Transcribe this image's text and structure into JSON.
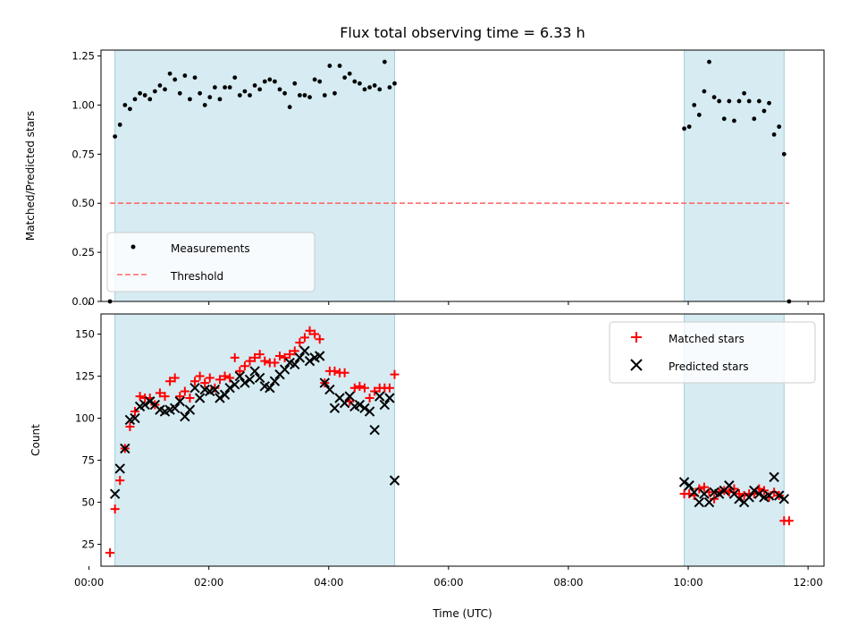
{
  "chart_data": [
    {
      "type": "scatter",
      "title": "Flux total observing time = 6.33 h",
      "xlabel": "",
      "ylabel": "Matched/Predicted stars",
      "xlim": [
        "00:12",
        "12:16"
      ],
      "ylim": [
        0,
        1.28
      ],
      "yticks": [
        "0.00",
        "0.25",
        "0.50",
        "0.75",
        "1.00",
        "1.25"
      ],
      "shaded_regions": [
        [
          "00:26",
          "05:06"
        ],
        [
          "09:56",
          "11:36"
        ]
      ],
      "legend_position": "lower-left",
      "legend": [
        "Measurements",
        "Threshold"
      ],
      "threshold": {
        "name": "Threshold",
        "y": 0.5,
        "x_start": "00:21",
        "x_end": "11:41",
        "color": "#ff6b6b"
      },
      "series": [
        {
          "name": "Measurements",
          "color": "#000000",
          "x": [
            "00:21",
            "00:26",
            "00:31",
            "00:36",
            "00:41",
            "00:46",
            "00:51",
            "00:56",
            "01:01",
            "01:06",
            "01:11",
            "01:16",
            "01:21",
            "01:26",
            "01:31",
            "01:36",
            "01:41",
            "01:46",
            "01:51",
            "01:56",
            "02:01",
            "02:06",
            "02:11",
            "02:16",
            "02:21",
            "02:26",
            "02:31",
            "02:36",
            "02:41",
            "02:46",
            "02:51",
            "02:56",
            "03:01",
            "03:06",
            "03:11",
            "03:16",
            "03:21",
            "03:26",
            "03:31",
            "03:36",
            "03:41",
            "03:46",
            "03:51",
            "03:56",
            "04:01",
            "04:06",
            "04:11",
            "04:16",
            "04:21",
            "04:26",
            "04:31",
            "04:36",
            "04:41",
            "04:46",
            "04:51",
            "04:56",
            "05:01",
            "05:06",
            "09:56",
            "10:01",
            "10:06",
            "10:11",
            "10:16",
            "10:21",
            "10:26",
            "10:31",
            "10:36",
            "10:41",
            "10:46",
            "10:51",
            "10:56",
            "11:01",
            "11:06",
            "11:11",
            "11:16",
            "11:21",
            "11:26",
            "11:31",
            "11:36",
            "11:41"
          ],
          "y": [
            0.0,
            0.84,
            0.9,
            1.0,
            0.98,
            1.03,
            1.06,
            1.05,
            1.03,
            1.07,
            1.1,
            1.08,
            1.16,
            1.13,
            1.06,
            1.15,
            1.03,
            1.14,
            1.06,
            1.0,
            1.04,
            1.09,
            1.03,
            1.09,
            1.09,
            1.14,
            1.05,
            1.07,
            1.05,
            1.1,
            1.08,
            1.12,
            1.13,
            1.12,
            1.08,
            1.06,
            0.99,
            1.11,
            1.05,
            1.05,
            1.04,
            1.13,
            1.12,
            1.05,
            1.2,
            1.06,
            1.2,
            1.14,
            1.16,
            1.12,
            1.11,
            1.08,
            1.09,
            1.1,
            1.08,
            1.22,
            1.09,
            1.11,
            0.88,
            0.89,
            1.0,
            0.95,
            1.07,
            1.22,
            1.04,
            1.02,
            0.93,
            1.02,
            0.92,
            1.02,
            1.06,
            1.02,
            0.93,
            1.02,
            0.97,
            1.01,
            0.85,
            0.89,
            0.75,
            0.0
          ]
        }
      ]
    },
    {
      "type": "scatter",
      "title": "",
      "xlabel": "Time (UTC)",
      "ylabel": "Count",
      "xlim": [
        "00:12",
        "12:16"
      ],
      "ylim": [
        12,
        162
      ],
      "yticks": [
        "25",
        "50",
        "75",
        "100",
        "125",
        "150"
      ],
      "xticks": [
        "00:00",
        "02:00",
        "04:00",
        "06:00",
        "08:00",
        "10:00",
        "12:00"
      ],
      "shaded_regions": [
        [
          "00:26",
          "05:06"
        ],
        [
          "09:56",
          "11:36"
        ]
      ],
      "legend_position": "top-right",
      "legend": [
        "Matched stars",
        "Predicted stars"
      ],
      "series": [
        {
          "name": "Matched stars",
          "color": "#ff0000",
          "x": [
            "00:21",
            "00:26",
            "00:31",
            "00:36",
            "00:41",
            "00:46",
            "00:51",
            "00:56",
            "01:01",
            "01:06",
            "01:11",
            "01:16",
            "01:21",
            "01:26",
            "01:31",
            "01:36",
            "01:41",
            "01:46",
            "01:51",
            "01:56",
            "02:01",
            "02:06",
            "02:11",
            "02:16",
            "02:21",
            "02:26",
            "02:31",
            "02:36",
            "02:41",
            "02:46",
            "02:51",
            "02:56",
            "03:01",
            "03:06",
            "03:11",
            "03:16",
            "03:21",
            "03:26",
            "03:31",
            "03:36",
            "03:41",
            "03:46",
            "03:51",
            "03:56",
            "04:01",
            "04:06",
            "04:11",
            "04:16",
            "04:21",
            "04:26",
            "04:31",
            "04:36",
            "04:41",
            "04:46",
            "04:51",
            "04:56",
            "05:01",
            "05:06",
            "09:56",
            "10:01",
            "10:06",
            "10:11",
            "10:16",
            "10:21",
            "10:26",
            "10:31",
            "10:36",
            "10:41",
            "10:46",
            "10:51",
            "10:56",
            "11:01",
            "11:06",
            "11:11",
            "11:16",
            "11:21",
            "11:26",
            "11:31",
            "11:36",
            "11:41"
          ],
          "y": [
            20,
            46,
            63,
            82,
            95,
            104,
            113,
            112,
            112,
            108,
            115,
            113,
            122,
            124,
            113,
            116,
            112,
            122,
            125,
            121,
            124,
            118,
            123,
            125,
            124,
            136,
            128,
            131,
            134,
            136,
            138,
            134,
            133,
            133,
            137,
            136,
            138,
            140,
            145,
            148,
            152,
            150,
            147,
            121,
            128,
            128,
            127,
            127,
            110,
            118,
            119,
            118,
            112,
            116,
            118,
            118,
            118,
            126,
            55,
            55,
            54,
            58,
            59,
            56,
            52,
            56,
            57,
            56,
            58,
            55,
            54,
            55,
            55,
            58,
            57,
            53,
            56,
            54,
            39,
            39
          ]
        },
        {
          "name": "Predicted stars",
          "color": "#000000",
          "x": [
            "00:26",
            "00:31",
            "00:36",
            "00:41",
            "00:46",
            "00:51",
            "00:56",
            "01:01",
            "01:06",
            "01:11",
            "01:16",
            "01:21",
            "01:26",
            "01:31",
            "01:36",
            "01:41",
            "01:46",
            "01:51",
            "01:56",
            "02:01",
            "02:06",
            "02:11",
            "02:16",
            "02:21",
            "02:26",
            "02:31",
            "02:36",
            "02:41",
            "02:46",
            "02:51",
            "02:56",
            "03:01",
            "03:06",
            "03:11",
            "03:16",
            "03:21",
            "03:26",
            "03:31",
            "03:36",
            "03:41",
            "03:46",
            "03:51",
            "03:56",
            "04:01",
            "04:06",
            "04:11",
            "04:16",
            "04:21",
            "04:26",
            "04:31",
            "04:36",
            "04:41",
            "04:46",
            "04:51",
            "04:56",
            "05:01",
            "05:06",
            "09:56",
            "10:01",
            "10:06",
            "10:11",
            "10:16",
            "10:21",
            "10:26",
            "10:31",
            "10:36",
            "10:41",
            "10:46",
            "10:51",
            "10:56",
            "11:01",
            "11:06",
            "11:11",
            "11:16",
            "11:21",
            "11:26",
            "11:31",
            "11:36"
          ],
          "y": [
            55,
            70,
            82,
            99,
            100,
            107,
            108,
            110,
            108,
            105,
            104,
            105,
            106,
            110,
            101,
            105,
            118,
            112,
            117,
            116,
            117,
            112,
            114,
            118,
            120,
            125,
            121,
            123,
            128,
            124,
            119,
            118,
            122,
            126,
            129,
            133,
            132,
            136,
            140,
            134,
            136,
            137,
            121,
            117,
            106,
            112,
            109,
            113,
            107,
            108,
            106,
            104,
            93,
            113,
            108,
            112,
            63,
            62,
            60,
            56,
            50,
            55,
            50,
            56,
            55,
            57,
            60,
            55,
            52,
            50,
            53,
            57,
            55,
            53,
            54,
            65,
            54,
            52
          ]
        }
      ]
    }
  ]
}
